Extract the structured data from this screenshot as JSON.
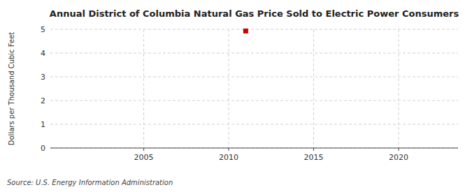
{
  "chart_data": {
    "type": "scatter",
    "title": "Annual District of Columbia Natural Gas Price Sold to Electric Power Consumers",
    "ylabel": "Dollars per Thousand Cubic Feet",
    "annotations": [
      "Source: U.S. Energy Information Administration"
    ],
    "x": [
      2011
    ],
    "values": [
      4.93
    ],
    "color": "#cc0000",
    "marker": "square",
    "xlim": [
      1999.5,
      2023.5
    ],
    "ylim": [
      0,
      5
    ],
    "xticks": [
      2005,
      2010,
      2015,
      2020
    ],
    "yticks": [
      0,
      1,
      2,
      3,
      4,
      5
    ],
    "grid": true
  }
}
